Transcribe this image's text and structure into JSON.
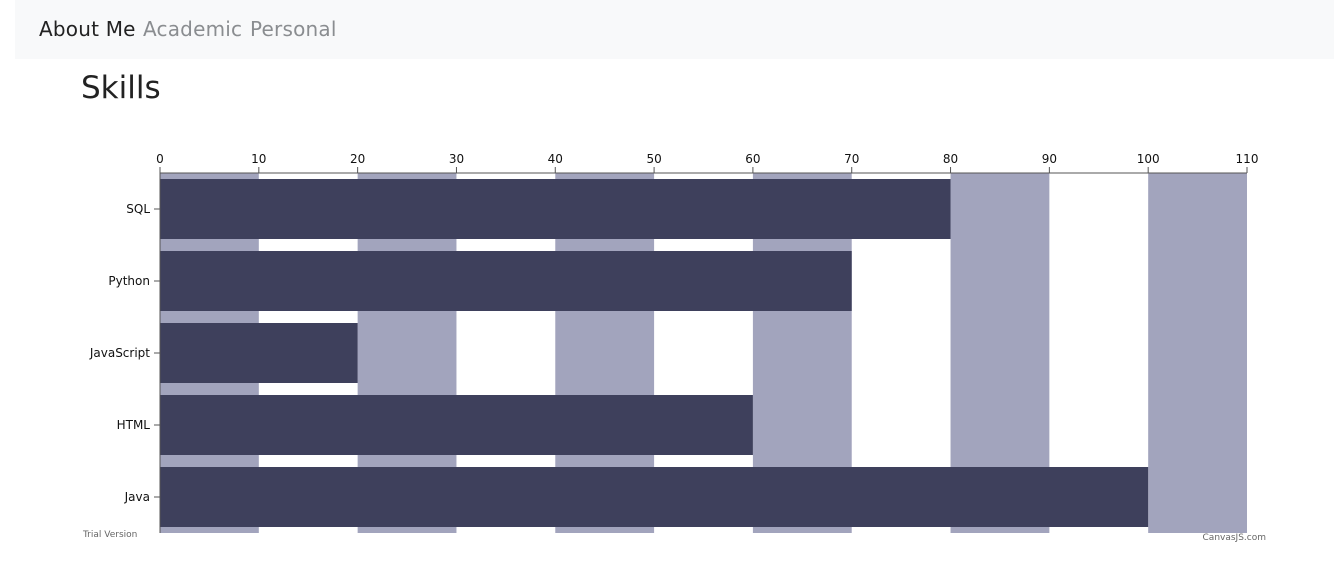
{
  "nav": {
    "links": [
      {
        "label": "About Me",
        "active": true
      },
      {
        "label": "Academic",
        "active": false
      },
      {
        "label": "Personal",
        "active": false
      }
    ]
  },
  "section": {
    "title": "Skills"
  },
  "colors": {
    "bar": "#3e405c",
    "stripe": "#a2a4bd",
    "axis": "#555555",
    "navbar_bg": "#f8f9fa"
  },
  "chart_data": {
    "type": "bar",
    "orientation": "horizontal",
    "categories": [
      "SQL",
      "Python",
      "JavaScript",
      "HTML",
      "Java"
    ],
    "values": [
      80,
      70,
      20,
      60,
      100
    ],
    "xlim": [
      0,
      110
    ],
    "x_ticks": [
      0,
      10,
      20,
      30,
      40,
      50,
      60,
      70,
      80,
      90,
      100,
      110
    ],
    "x_axis_position": "top",
    "interlaced_bands": "alternating 10-unit bands from 0",
    "grid": false,
    "legend": "none",
    "title": "",
    "xlabel": "",
    "ylabel": ""
  },
  "credits": {
    "left": "Trial Version",
    "right": "CanvasJS.com"
  }
}
